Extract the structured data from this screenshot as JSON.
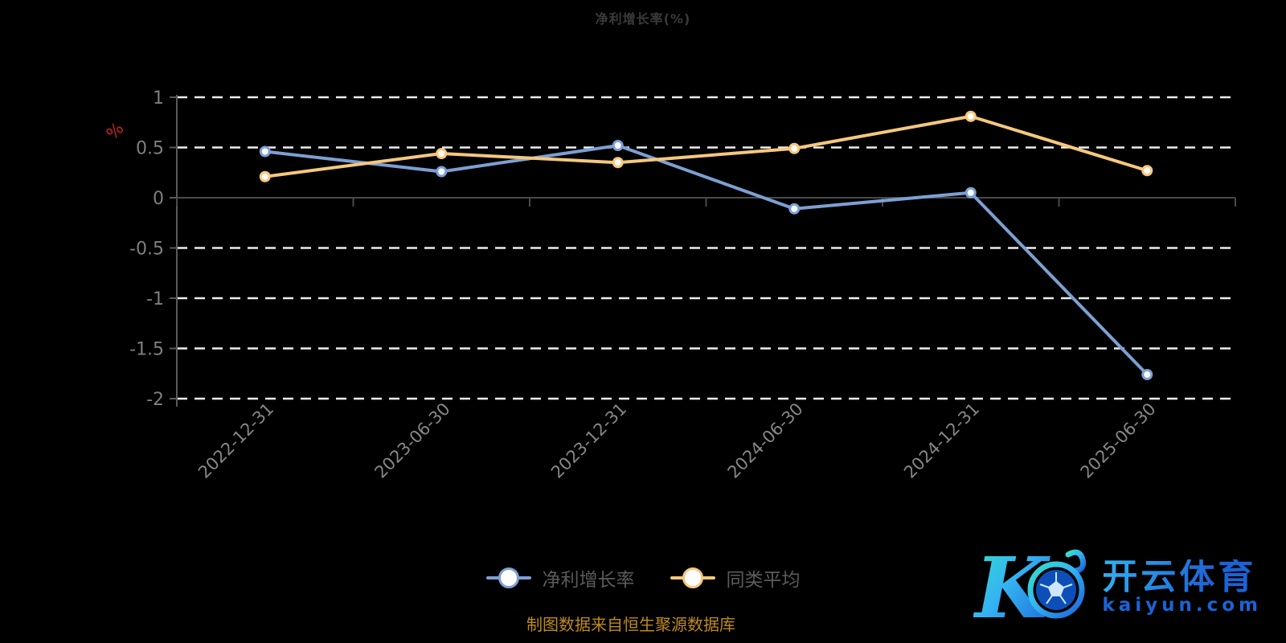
{
  "title": "净利增长率(%)",
  "y_axis_name": "%",
  "y_axis_name_color": "#c22527",
  "chart_data": {
    "type": "line",
    "categories": [
      "2022-12-31",
      "2023-06-30",
      "2023-12-31",
      "2024-06-30",
      "2024-12-31",
      "2025-06-30"
    ],
    "series": [
      {
        "name": "净利增长率",
        "color": "#7d9fd3",
        "values": [
          0.46,
          0.26,
          0.52,
          -0.11,
          0.05,
          -1.76
        ]
      },
      {
        "name": "同类平均",
        "color": "#f6c87c",
        "values": [
          0.21,
          0.44,
          0.35,
          0.49,
          0.81,
          0.27
        ]
      }
    ],
    "ylim": [
      -2,
      1
    ],
    "yticks": [
      1,
      0.5,
      0,
      -0.5,
      -1,
      -1.5,
      -2
    ],
    "grid": "horizontal dashed white, solid gray zero line",
    "legend_position": "bottom",
    "marker": "white-filled circle with series-color ring",
    "x_label_rotation_deg": 45
  },
  "legend": {
    "items": [
      {
        "label": "净利增长率",
        "color": "#7d9fd3"
      },
      {
        "label": "同类平均",
        "color": "#f6c87c"
      }
    ]
  },
  "caption": "制图数据来自恒生聚源数据库",
  "watermark": {
    "brand": "开云体育",
    "domain": "kaiyun.com",
    "icon": "stylized-K-with-soccer-ball",
    "accent_colors": [
      "#35e0c8",
      "#34b4f2",
      "#1b63d6"
    ]
  },
  "colors": {
    "background": "#000000",
    "title": "#3b3b3b",
    "gridline": "#ededed",
    "zero_axis": "#4a4a4a",
    "axis_label": "#7f7f7f",
    "legend_text": "#5b5b5b",
    "caption": "#bd8b1b"
  }
}
